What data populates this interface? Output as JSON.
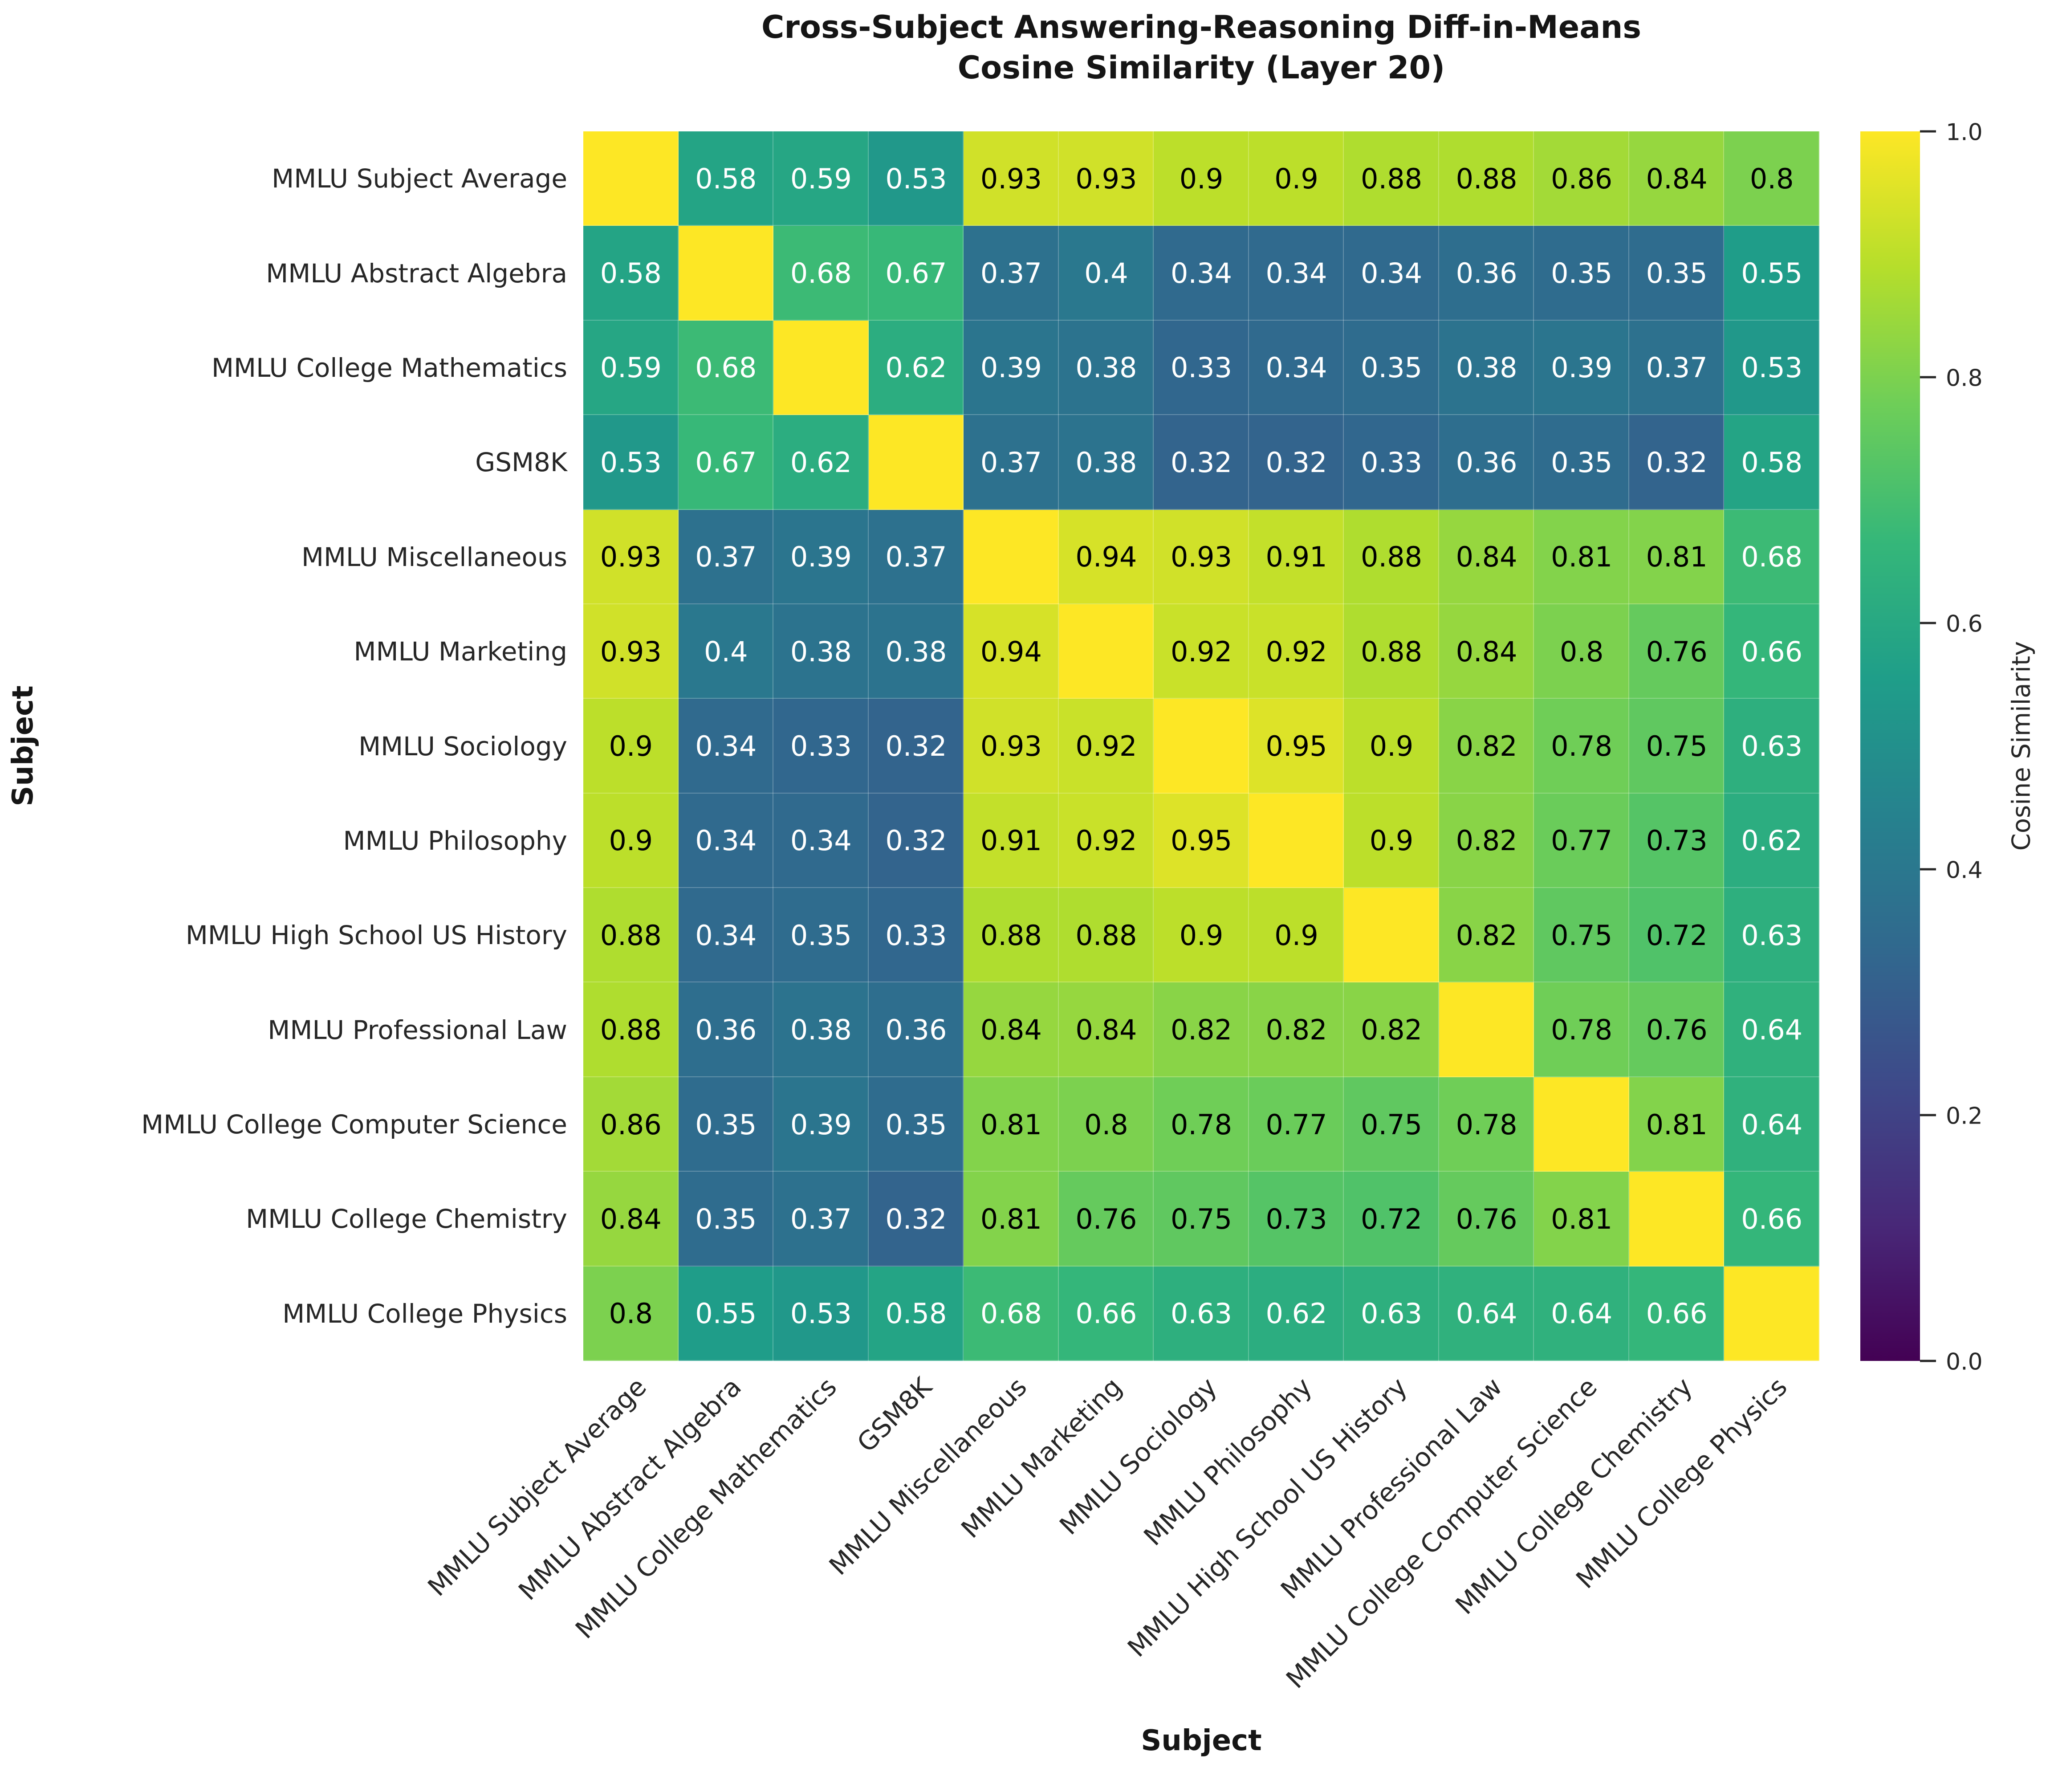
{
  "title": {
    "line1": "Cross-Subject Answering-Reasoning Diff-in-Means",
    "line2": "Cosine Similarity (Layer 20)"
  },
  "chart_data": {
    "type": "heatmap",
    "title": "Cross-Subject Answering-Reasoning Diff-in-Means Cosine Similarity (Layer 20)",
    "xlabel": "Subject",
    "ylabel": "Subject",
    "colorbar_label": "Cosine Similarity",
    "colorbar_ticks": [
      "1.0",
      "0.8",
      "0.6",
      "0.4",
      "0.2",
      "0.0"
    ],
    "vmin": 0.0,
    "vmax": 1.0,
    "colormap": "viridis",
    "colormap_stops": [
      "#440154",
      "#482878",
      "#3e4989",
      "#31688e",
      "#26828e",
      "#1f9e89",
      "#35b779",
      "#6ece58",
      "#b5de2b",
      "#fde725"
    ],
    "show_diagonal_annotations": false,
    "annot_text_dark": "#000000",
    "annot_text_light": "#ffffff",
    "annot_dark_threshold": 0.7,
    "categories": [
      "MMLU Subject Average",
      "MMLU Abstract Algebra",
      "MMLU College Mathematics",
      "GSM8K",
      "MMLU Miscellaneous",
      "MMLU Marketing",
      "MMLU Sociology",
      "MMLU Philosophy",
      "MMLU High School US History",
      "MMLU Professional Law",
      "MMLU College Computer Science",
      "MMLU College Chemistry",
      "MMLU College Physics"
    ],
    "matrix": [
      [
        1.0,
        0.58,
        0.59,
        0.53,
        0.93,
        0.93,
        0.9,
        0.9,
        0.88,
        0.88,
        0.86,
        0.84,
        0.8
      ],
      [
        0.58,
        1.0,
        0.68,
        0.67,
        0.37,
        0.4,
        0.34,
        0.34,
        0.34,
        0.36,
        0.35,
        0.35,
        0.55
      ],
      [
        0.59,
        0.68,
        1.0,
        0.62,
        0.39,
        0.38,
        0.33,
        0.34,
        0.35,
        0.38,
        0.39,
        0.37,
        0.53
      ],
      [
        0.53,
        0.67,
        0.62,
        1.0,
        0.37,
        0.38,
        0.32,
        0.32,
        0.33,
        0.36,
        0.35,
        0.32,
        0.58
      ],
      [
        0.93,
        0.37,
        0.39,
        0.37,
        1.0,
        0.94,
        0.93,
        0.91,
        0.88,
        0.84,
        0.81,
        0.81,
        0.68
      ],
      [
        0.93,
        0.4,
        0.38,
        0.38,
        0.94,
        1.0,
        0.92,
        0.92,
        0.88,
        0.84,
        0.8,
        0.76,
        0.66
      ],
      [
        0.9,
        0.34,
        0.33,
        0.32,
        0.93,
        0.92,
        1.0,
        0.95,
        0.9,
        0.82,
        0.78,
        0.75,
        0.63
      ],
      [
        0.9,
        0.34,
        0.34,
        0.32,
        0.91,
        0.92,
        0.95,
        1.0,
        0.9,
        0.82,
        0.77,
        0.73,
        0.62
      ],
      [
        0.88,
        0.34,
        0.35,
        0.33,
        0.88,
        0.88,
        0.9,
        0.9,
        1.0,
        0.82,
        0.75,
        0.72,
        0.63
      ],
      [
        0.88,
        0.36,
        0.38,
        0.36,
        0.84,
        0.84,
        0.82,
        0.82,
        0.82,
        1.0,
        0.78,
        0.76,
        0.64
      ],
      [
        0.86,
        0.35,
        0.39,
        0.35,
        0.81,
        0.8,
        0.78,
        0.77,
        0.75,
        0.78,
        1.0,
        0.81,
        0.64
      ],
      [
        0.84,
        0.35,
        0.37,
        0.32,
        0.81,
        0.76,
        0.75,
        0.73,
        0.72,
        0.76,
        0.81,
        1.0,
        0.66
      ],
      [
        0.8,
        0.55,
        0.53,
        0.58,
        0.68,
        0.66,
        0.63,
        0.62,
        0.63,
        0.64,
        0.64,
        0.66,
        1.0
      ]
    ]
  }
}
